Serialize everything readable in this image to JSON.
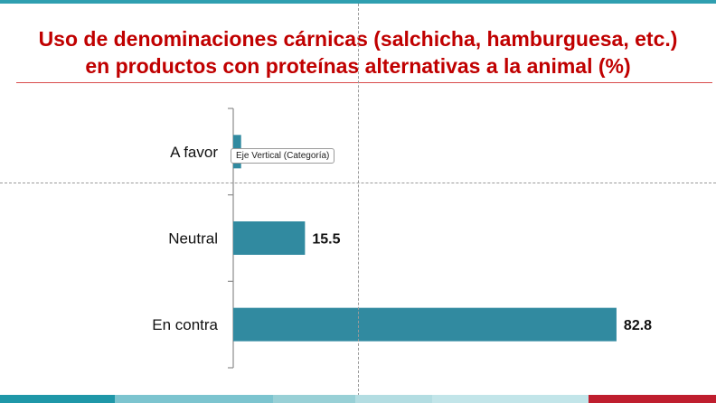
{
  "title_line1": "Uso de denominaciones cárnicas (salchicha, hamburguesa, etc.)",
  "title_line2": "en productos con proteínas alternativas a la animal (%)",
  "tooltip": "Eje Vertical (Categoría)",
  "colors": {
    "bar": "#318aa0",
    "title": "#c00000",
    "footer": [
      "#1f97a8",
      "#7cc4cf",
      "#98d0d6",
      "#b3dde2",
      "#c2e5e9",
      "#bf1e2e"
    ]
  },
  "chart_data": {
    "type": "bar",
    "orientation": "horizontal",
    "title": "Uso de denominaciones cárnicas (salchicha, hamburguesa, etc.) en productos con proteínas alternativas a la animal (%)",
    "categories": [
      "A favor",
      "Neutral",
      "En contra"
    ],
    "values": [
      1.7,
      15.5,
      82.8
    ],
    "value_labels": [
      "",
      "15.5",
      "82.8"
    ],
    "xlabel": "",
    "ylabel": "",
    "xlim": [
      0,
      100
    ],
    "grid": false,
    "legend": "none"
  }
}
